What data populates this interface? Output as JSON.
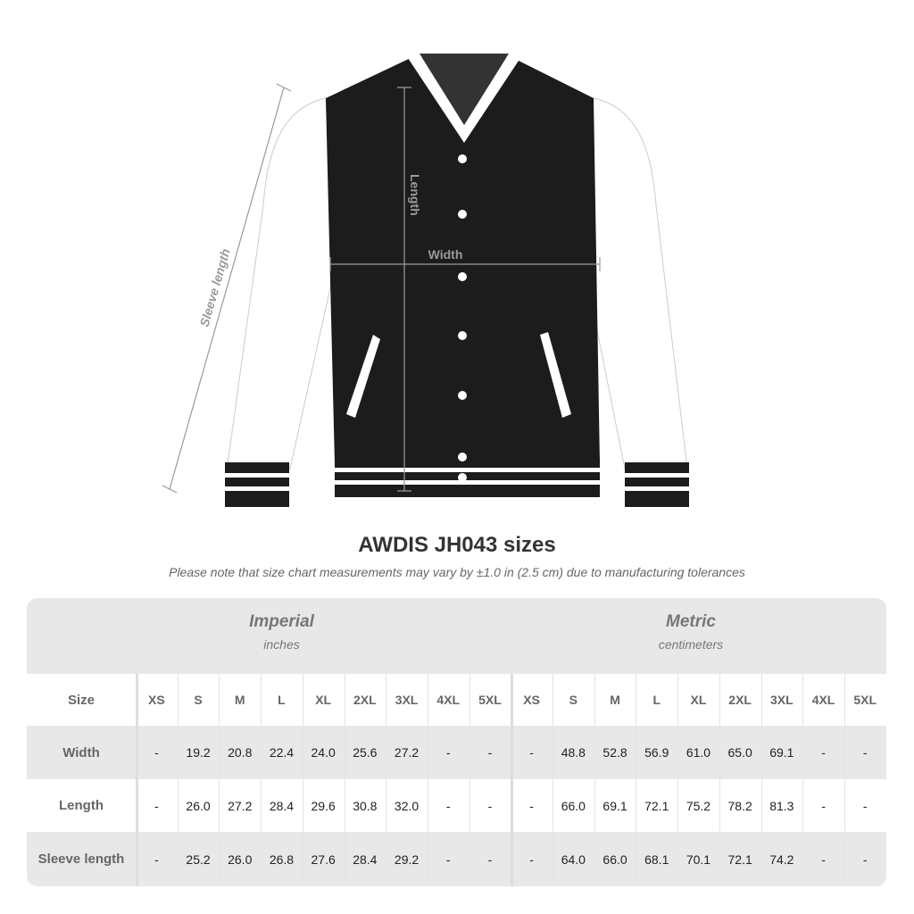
{
  "diagram": {
    "labels": {
      "length": "Length",
      "width": "Width",
      "sleeve_length": "Sleeve length"
    },
    "colors": {
      "body": "#1c1c1c",
      "sleeves": "#ffffff",
      "stripes": "#ffffff",
      "measure_lines": "#9a9a9a"
    }
  },
  "title": "AWDIS JH043 sizes",
  "subtitle": "Please note that size chart measurements may vary by ±1.0 in (2.5 cm) due to manufacturing tolerances",
  "table": {
    "groups": [
      {
        "name": "Imperial",
        "unit": "inches"
      },
      {
        "name": "Metric",
        "unit": "centimeters"
      }
    ],
    "size_header": "Size",
    "sizes": [
      "XS",
      "S",
      "M",
      "L",
      "XL",
      "2XL",
      "3XL",
      "4XL",
      "5XL"
    ],
    "rows": [
      {
        "label": "Width",
        "imperial": [
          "-",
          "19.2",
          "20.8",
          "22.4",
          "24.0",
          "25.6",
          "27.2",
          "-",
          "-"
        ],
        "metric": [
          "-",
          "48.8",
          "52.8",
          "56.9",
          "61.0",
          "65.0",
          "69.1",
          "-",
          "-"
        ]
      },
      {
        "label": "Length",
        "imperial": [
          "-",
          "26.0",
          "27.2",
          "28.4",
          "29.6",
          "30.8",
          "32.0",
          "-",
          "-"
        ],
        "metric": [
          "-",
          "66.0",
          "69.1",
          "72.1",
          "75.2",
          "78.2",
          "81.3",
          "-",
          "-"
        ]
      },
      {
        "label": "Sleeve length",
        "imperial": [
          "-",
          "25.2",
          "26.0",
          "26.8",
          "27.6",
          "28.4",
          "29.2",
          "-",
          "-"
        ],
        "metric": [
          "-",
          "64.0",
          "66.0",
          "68.1",
          "70.1",
          "72.1",
          "74.2",
          "-",
          "-"
        ]
      }
    ]
  }
}
